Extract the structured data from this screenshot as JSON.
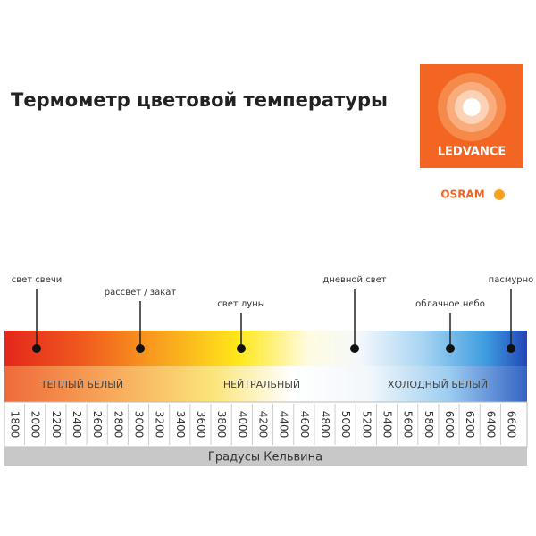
{
  "header": {
    "title": "Термометр цветовой температуры"
  },
  "logo": {
    "brand": "LEDVANCE",
    "sub": "OSRAM"
  },
  "markers": [
    "свет свечи",
    "рассвет / закат",
    "свет луны",
    "дневной свет",
    "облачное небо",
    "пасмурно"
  ],
  "zones": [
    "ТЕПЛЫЙ БЕЛЫЙ",
    "НЕЙТРАЛЬНЫЙ",
    "ХОЛОДНЫЙ БЕЛЫЙ"
  ],
  "scale": {
    "ticks": [
      1800,
      2000,
      2200,
      2400,
      2600,
      2800,
      3000,
      3200,
      3400,
      3600,
      3800,
      4000,
      4200,
      4400,
      4600,
      4800,
      5000,
      5200,
      5400,
      5600,
      5800,
      6000,
      6200,
      6400,
      6600
    ],
    "label": "Градусы Кельвина"
  }
}
